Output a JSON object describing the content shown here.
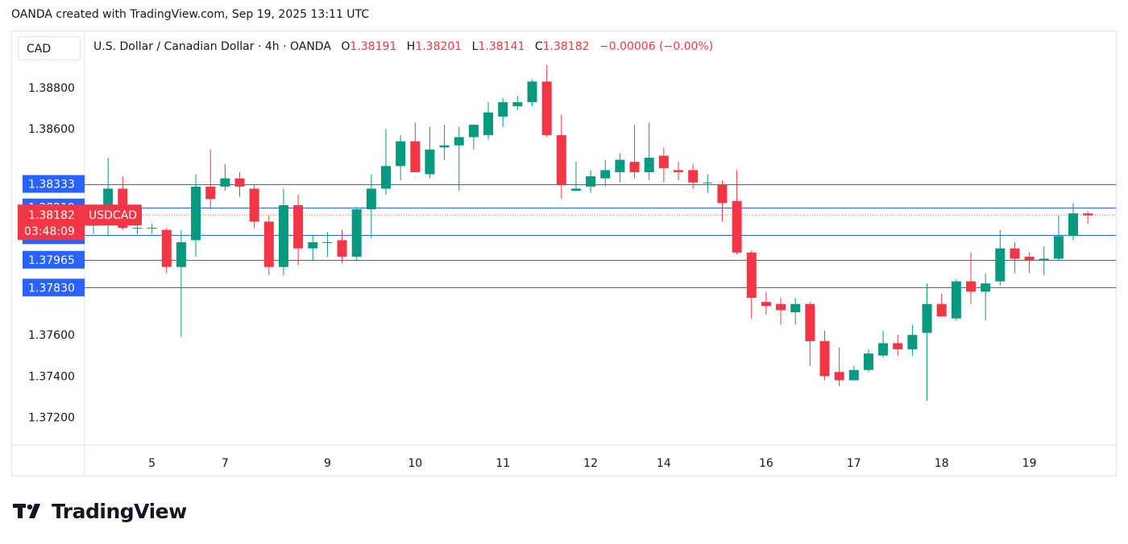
{
  "header": {
    "text": "OANDA created with TradingView.com, Sep 19, 2025 13:11 UTC"
  },
  "currency_box": "CAD",
  "legend": {
    "title": "U.S. Dollar / Canadian Dollar · 4h · OANDA",
    "open_label": "O",
    "open": "1.38191",
    "high_label": "H",
    "high": "1.38201",
    "low_label": "L",
    "low": "1.38141",
    "close_label": "C",
    "close": "1.38182",
    "change": "−0.00006 (−0.00%)"
  },
  "price_tag": {
    "price": "1.38182",
    "symbol": "USDCAD",
    "countdown": "03:48:09"
  },
  "logo_text": "TradingView",
  "colors": {
    "up": "#089981",
    "down": "#f23645",
    "hline": "#2962ff",
    "grid": "#e0e3eb",
    "label_bg": "#2962ff"
  },
  "chart_data": {
    "type": "candlestick",
    "symbol": "USDCAD",
    "timeframe": "4h",
    "ylim": [
      1.3708,
      1.39
    ],
    "y_ticks": [
      "1.38800",
      "1.38600",
      "1.37600",
      "1.37400",
      "1.37200"
    ],
    "x_ticks": [
      {
        "label": "5",
        "index": 4
      },
      {
        "label": "7",
        "index": 9
      },
      {
        "label": "9",
        "index": 16
      },
      {
        "label": "10",
        "index": 22
      },
      {
        "label": "11",
        "index": 28
      },
      {
        "label": "12",
        "index": 34
      },
      {
        "label": "14",
        "index": 39
      },
      {
        "label": "16",
        "index": 46
      },
      {
        "label": "17",
        "index": 52
      },
      {
        "label": "18",
        "index": 58
      },
      {
        "label": "19",
        "index": 64
      }
    ],
    "horizontal_lines": [
      "1.38333",
      "1.38219",
      "1.38084",
      "1.37965",
      "1.37830"
    ],
    "last_price": "1.38182",
    "candles": [
      {
        "o": 1.3813,
        "h": 1.3818,
        "l": 1.3809,
        "c": 1.3817
      },
      {
        "o": 1.3817,
        "h": 1.3846,
        "l": 1.3808,
        "c": 1.3831
      },
      {
        "o": 1.3831,
        "h": 1.3837,
        "l": 1.3811,
        "c": 1.3812
      },
      {
        "o": 1.3812,
        "h": 1.3815,
        "l": 1.3809,
        "c": 1.3812
      },
      {
        "o": 1.3812,
        "h": 1.3814,
        "l": 1.3809,
        "c": 1.3812
      },
      {
        "o": 1.3811,
        "h": 1.3812,
        "l": 1.379,
        "c": 1.3793
      },
      {
        "o": 1.3793,
        "h": 1.3811,
        "l": 1.3759,
        "c": 1.3805
      },
      {
        "o": 1.3806,
        "h": 1.3838,
        "l": 1.3798,
        "c": 1.3832
      },
      {
        "o": 1.3832,
        "h": 1.385,
        "l": 1.3821,
        "c": 1.3826
      },
      {
        "o": 1.3832,
        "h": 1.3843,
        "l": 1.383,
        "c": 1.3836
      },
      {
        "o": 1.3836,
        "h": 1.3839,
        "l": 1.3827,
        "c": 1.3832
      },
      {
        "o": 1.3831,
        "h": 1.3833,
        "l": 1.3812,
        "c": 1.3815
      },
      {
        "o": 1.3815,
        "h": 1.3818,
        "l": 1.3789,
        "c": 1.3793
      },
      {
        "o": 1.3793,
        "h": 1.3831,
        "l": 1.3789,
        "c": 1.3823
      },
      {
        "o": 1.3823,
        "h": 1.3828,
        "l": 1.3794,
        "c": 1.3802
      },
      {
        "o": 1.3802,
        "h": 1.3808,
        "l": 1.3796,
        "c": 1.3805
      },
      {
        "o": 1.3805,
        "h": 1.381,
        "l": 1.3798,
        "c": 1.3805
      },
      {
        "o": 1.3806,
        "h": 1.3811,
        "l": 1.3795,
        "c": 1.3798
      },
      {
        "o": 1.3798,
        "h": 1.3822,
        "l": 1.3796,
        "c": 1.3821
      },
      {
        "o": 1.3821,
        "h": 1.3838,
        "l": 1.3807,
        "c": 1.3831
      },
      {
        "o": 1.3831,
        "h": 1.386,
        "l": 1.3828,
        "c": 1.3842
      },
      {
        "o": 1.3842,
        "h": 1.3857,
        "l": 1.3835,
        "c": 1.3854
      },
      {
        "o": 1.3854,
        "h": 1.3863,
        "l": 1.3839,
        "c": 1.3839
      },
      {
        "o": 1.3838,
        "h": 1.3861,
        "l": 1.3836,
        "c": 1.385
      },
      {
        "o": 1.3851,
        "h": 1.3862,
        "l": 1.3845,
        "c": 1.3852
      },
      {
        "o": 1.3852,
        "h": 1.3861,
        "l": 1.383,
        "c": 1.3856
      },
      {
        "o": 1.3856,
        "h": 1.3862,
        "l": 1.385,
        "c": 1.3862
      },
      {
        "o": 1.3857,
        "h": 1.3873,
        "l": 1.3855,
        "c": 1.3868
      },
      {
        "o": 1.3866,
        "h": 1.3875,
        "l": 1.3861,
        "c": 1.3873
      },
      {
        "o": 1.3871,
        "h": 1.3876,
        "l": 1.3869,
        "c": 1.3873
      },
      {
        "o": 1.3873,
        "h": 1.3884,
        "l": 1.3871,
        "c": 1.3883
      },
      {
        "o": 1.3883,
        "h": 1.3891,
        "l": 1.3856,
        "c": 1.3857
      },
      {
        "o": 1.3857,
        "h": 1.3867,
        "l": 1.3826,
        "c": 1.3833
      },
      {
        "o": 1.383,
        "h": 1.3844,
        "l": 1.383,
        "c": 1.3831
      },
      {
        "o": 1.3832,
        "h": 1.384,
        "l": 1.3829,
        "c": 1.3837
      },
      {
        "o": 1.3836,
        "h": 1.3845,
        "l": 1.3832,
        "c": 1.384
      },
      {
        "o": 1.3839,
        "h": 1.3848,
        "l": 1.3834,
        "c": 1.3845
      },
      {
        "o": 1.3844,
        "h": 1.3862,
        "l": 1.3836,
        "c": 1.3839
      },
      {
        "o": 1.3839,
        "h": 1.3863,
        "l": 1.3835,
        "c": 1.3846
      },
      {
        "o": 1.3847,
        "h": 1.3851,
        "l": 1.3834,
        "c": 1.3841
      },
      {
        "o": 1.384,
        "h": 1.3844,
        "l": 1.3835,
        "c": 1.3839
      },
      {
        "o": 1.384,
        "h": 1.3843,
        "l": 1.3831,
        "c": 1.3834
      },
      {
        "o": 1.3834,
        "h": 1.3838,
        "l": 1.3829,
        "c": 1.3834
      },
      {
        "o": 1.3833,
        "h": 1.3835,
        "l": 1.3815,
        "c": 1.3824
      },
      {
        "o": 1.3825,
        "h": 1.384,
        "l": 1.3799,
        "c": 1.38
      },
      {
        "o": 1.38,
        "h": 1.3801,
        "l": 1.3768,
        "c": 1.3778
      },
      {
        "o": 1.3776,
        "h": 1.3781,
        "l": 1.377,
        "c": 1.3774
      },
      {
        "o": 1.3775,
        "h": 1.3778,
        "l": 1.3765,
        "c": 1.3772
      },
      {
        "o": 1.3771,
        "h": 1.3778,
        "l": 1.3765,
        "c": 1.3775
      },
      {
        "o": 1.3775,
        "h": 1.3776,
        "l": 1.3745,
        "c": 1.3757
      },
      {
        "o": 1.3757,
        "h": 1.3762,
        "l": 1.3738,
        "c": 1.374
      },
      {
        "o": 1.3742,
        "h": 1.3754,
        "l": 1.3735,
        "c": 1.3738
      },
      {
        "o": 1.3738,
        "h": 1.3745,
        "l": 1.3738,
        "c": 1.3743
      },
      {
        "o": 1.3743,
        "h": 1.3753,
        "l": 1.3742,
        "c": 1.3751
      },
      {
        "o": 1.375,
        "h": 1.3762,
        "l": 1.3749,
        "c": 1.3756
      },
      {
        "o": 1.3756,
        "h": 1.376,
        "l": 1.375,
        "c": 1.3753
      },
      {
        "o": 1.3753,
        "h": 1.3765,
        "l": 1.375,
        "c": 1.376
      },
      {
        "o": 1.3761,
        "h": 1.3785,
        "l": 1.3728,
        "c": 1.3775
      },
      {
        "o": 1.3775,
        "h": 1.378,
        "l": 1.3769,
        "c": 1.3769
      },
      {
        "o": 1.3768,
        "h": 1.3787,
        "l": 1.3767,
        "c": 1.3786
      },
      {
        "o": 1.3786,
        "h": 1.38,
        "l": 1.3775,
        "c": 1.3781
      },
      {
        "o": 1.3781,
        "h": 1.379,
        "l": 1.3767,
        "c": 1.3785
      },
      {
        "o": 1.3786,
        "h": 1.3811,
        "l": 1.3784,
        "c": 1.3802
      },
      {
        "o": 1.3802,
        "h": 1.3805,
        "l": 1.379,
        "c": 1.3797
      },
      {
        "o": 1.3798,
        "h": 1.38,
        "l": 1.379,
        "c": 1.3796
      },
      {
        "o": 1.3796,
        "h": 1.3803,
        "l": 1.3789,
        "c": 1.3797
      },
      {
        "o": 1.3797,
        "h": 1.3818,
        "l": 1.3796,
        "c": 1.3808
      },
      {
        "o": 1.3808,
        "h": 1.3824,
        "l": 1.3806,
        "c": 1.3819
      },
      {
        "o": 1.3819,
        "h": 1.382,
        "l": 1.3814,
        "c": 1.3818
      }
    ]
  }
}
